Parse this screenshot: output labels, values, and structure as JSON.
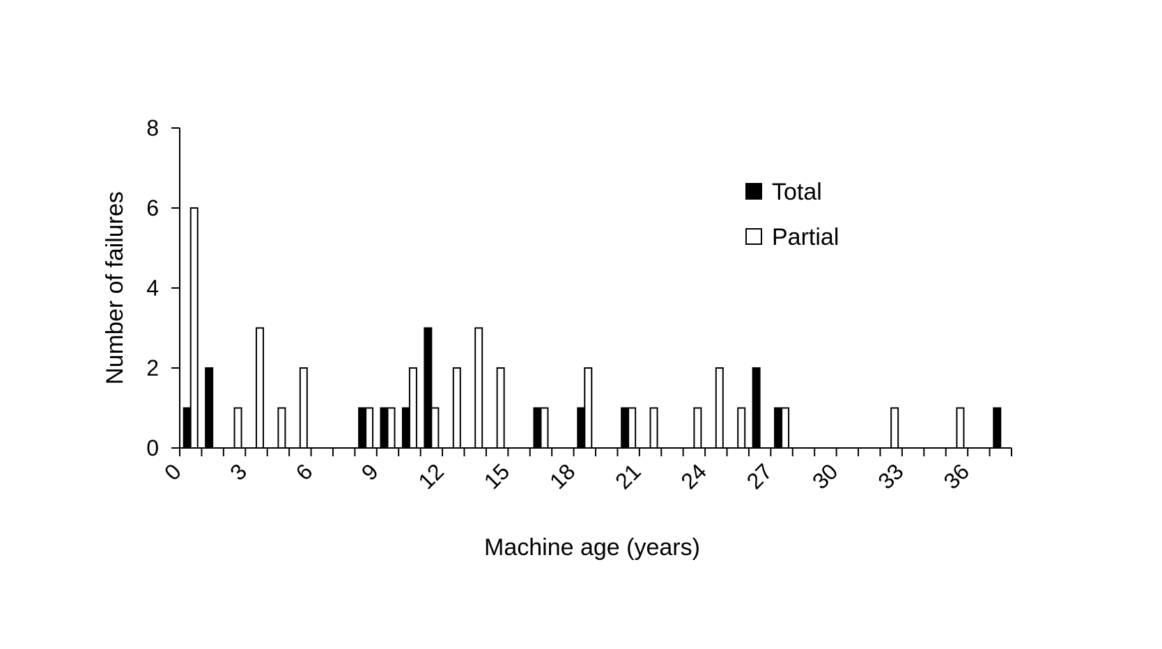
{
  "chart_data": {
    "type": "bar",
    "title": "",
    "xlabel": "Machine age (years)",
    "ylabel": "Number of failures",
    "ylim": [
      0,
      8
    ],
    "yticks": [
      0,
      2,
      4,
      6,
      8
    ],
    "xlim": [
      0,
      38
    ],
    "xticks": [
      "0",
      "3",
      "6",
      "9",
      "12",
      "15",
      "18",
      "21",
      "24",
      "27",
      "30",
      "33",
      "36"
    ],
    "grid": false,
    "legend": "top-right",
    "categories": [
      0,
      1,
      2,
      3,
      4,
      5,
      6,
      7,
      8,
      9,
      10,
      11,
      12,
      13,
      14,
      15,
      16,
      17,
      18,
      19,
      20,
      21,
      22,
      23,
      24,
      25,
      26,
      27,
      28,
      29,
      30,
      31,
      32,
      33,
      34,
      35,
      36,
      37
    ],
    "series": [
      {
        "name": "Total",
        "color": "#000000",
        "fill": "solid",
        "values": [
          1,
          2,
          0,
          0,
          0,
          0,
          0,
          0,
          1,
          1,
          1,
          3,
          0,
          0,
          0,
          0,
          1,
          0,
          1,
          0,
          1,
          0,
          0,
          0,
          0,
          0,
          2,
          1,
          0,
          0,
          0,
          0,
          0,
          0,
          0,
          0,
          0,
          1
        ]
      },
      {
        "name": "Partial",
        "color": "#000000",
        "fill": "hollow",
        "values": [
          6,
          0,
          1,
          3,
          1,
          2,
          0,
          0,
          1,
          1,
          2,
          1,
          2,
          3,
          2,
          0,
          1,
          0,
          2,
          0,
          1,
          1,
          0,
          1,
          2,
          1,
          0,
          1,
          0,
          0,
          0,
          0,
          1,
          0,
          0,
          1,
          0,
          0
        ]
      }
    ]
  }
}
